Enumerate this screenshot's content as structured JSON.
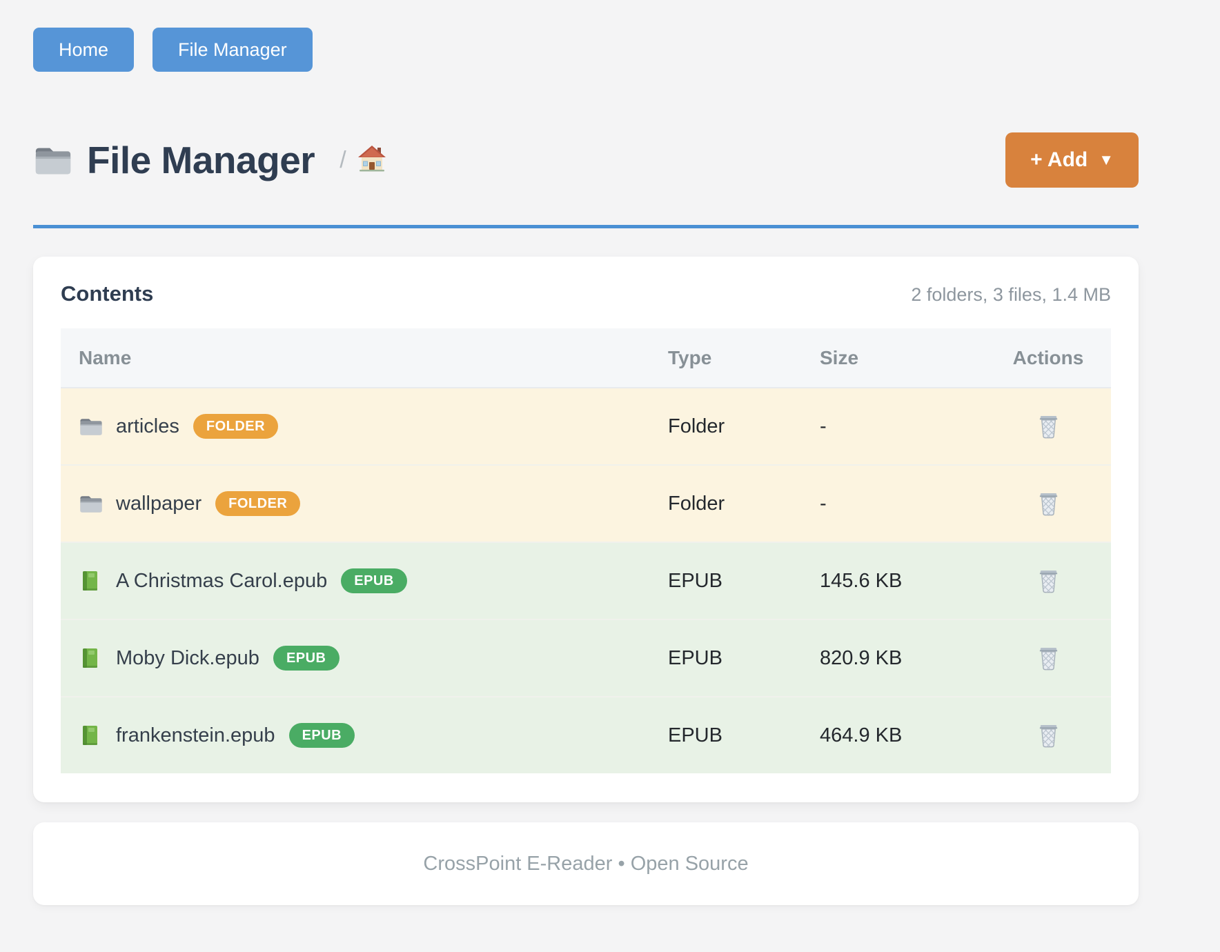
{
  "nav": {
    "buttons": [
      {
        "label": "Home"
      },
      {
        "label": "File Manager"
      }
    ]
  },
  "header": {
    "title": "File Manager",
    "title_icon": "folder-icon",
    "breadcrumb_separator": "/",
    "breadcrumb_root_icon": "house-icon",
    "add_button_label": "+ Add",
    "add_button_caret": "▼"
  },
  "card": {
    "title": "Contents",
    "summary": "2 folders, 3 files, 1.4 MB"
  },
  "table": {
    "headers": [
      "Name",
      "Type",
      "Size",
      "Actions"
    ],
    "rows": [
      {
        "name": "articles",
        "badge": "FOLDER",
        "kind": "folder",
        "type": "Folder",
        "size": "-",
        "action_icon": "trash-icon"
      },
      {
        "name": "wallpaper",
        "badge": "FOLDER",
        "kind": "folder",
        "type": "Folder",
        "size": "-",
        "action_icon": "trash-icon"
      },
      {
        "name": "A Christmas Carol.epub",
        "badge": "EPUB",
        "kind": "epub",
        "type": "EPUB",
        "size": "145.6 KB",
        "action_icon": "trash-icon"
      },
      {
        "name": "Moby Dick.epub",
        "badge": "EPUB",
        "kind": "epub",
        "type": "EPUB",
        "size": "820.9 KB",
        "action_icon": "trash-icon"
      },
      {
        "name": "frankenstein.epub",
        "badge": "EPUB",
        "kind": "epub",
        "type": "EPUB",
        "size": "464.9 KB",
        "action_icon": "trash-icon"
      }
    ]
  },
  "footer": {
    "text": "CrossPoint E-Reader • Open Source"
  },
  "colors": {
    "nav_button": "#5695d7",
    "accent_rule": "#4a90d4",
    "add_button": "#d8823d",
    "folder_badge": "#eba33d",
    "epub_badge": "#4aac64",
    "folder_row_bg": "#fcf4e0",
    "epub_row_bg": "#e8f2e6"
  }
}
